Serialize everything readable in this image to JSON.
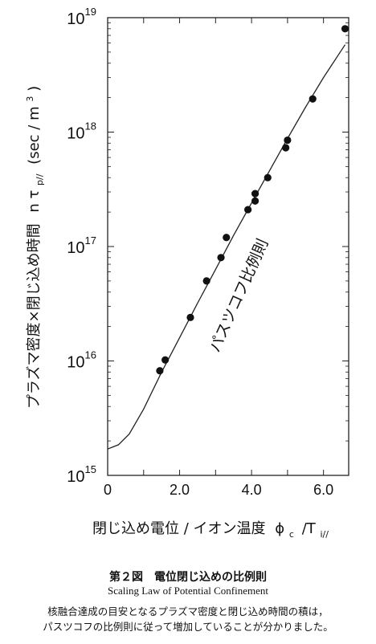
{
  "chart_data": {
    "type": "scatter",
    "ylabel": "プラズマ密度×閉じ込め時間",
    "ylabel_symbol": "n τ",
    "ylabel_symbol_sub": "p//",
    "ylabel_unit": "(sec / m",
    "ylabel_unit_sup": "3",
    "ylabel_unit_close": ")",
    "xlabel": "閉じ込め電位 / イオン温度",
    "xlabel_symbol": "ϕ",
    "xlabel_symbol_sub": "c",
    "xlabel_denom": "/T",
    "xlabel_denom_sub": "i//",
    "xlim": [
      0,
      6.7
    ],
    "ylim_log10": [
      15,
      19
    ],
    "y_scale": "log",
    "x_ticks": [
      {
        "v": 0,
        "label": "0"
      },
      {
        "v": 2,
        "label": "2.0"
      },
      {
        "v": 4,
        "label": "4.0"
      },
      {
        "v": 6,
        "label": "6.0"
      }
    ],
    "y_ticks": [
      {
        "e": 15,
        "base": "10",
        "exp": "15"
      },
      {
        "e": 16,
        "base": "10",
        "exp": "16"
      },
      {
        "e": 17,
        "base": "10",
        "exp": "17"
      },
      {
        "e": 18,
        "base": "10",
        "exp": "18"
      },
      {
        "e": 19,
        "base": "10",
        "exp": "19"
      }
    ],
    "annotation": "パスツコフ比例則",
    "points": [
      {
        "x": 1.45,
        "y": 8200000000000000.0
      },
      {
        "x": 1.6,
        "y": 1.02e+16
      },
      {
        "x": 2.3,
        "y": 2.4e+16
      },
      {
        "x": 2.75,
        "y": 5e+16
      },
      {
        "x": 3.15,
        "y": 8e+16
      },
      {
        "x": 3.3,
        "y": 1.2e+17
      },
      {
        "x": 3.9,
        "y": 2.1e+17
      },
      {
        "x": 4.1,
        "y": 2.5e+17
      },
      {
        "x": 4.1,
        "y": 2.9e+17
      },
      {
        "x": 4.45,
        "y": 4e+17
      },
      {
        "x": 4.95,
        "y": 7.3e+17
      },
      {
        "x": 5.0,
        "y": 8.5e+17
      },
      {
        "x": 5.7,
        "y": 1.95e+18
      },
      {
        "x": 6.6,
        "y": 8e+18
      }
    ],
    "fit_curve": [
      {
        "x": 0.0,
        "y": 1700000000000000.0
      },
      {
        "x": 0.3,
        "y": 1850000000000000.0
      },
      {
        "x": 0.6,
        "y": 2300000000000000.0
      },
      {
        "x": 1.0,
        "y": 3800000000000000.0
      },
      {
        "x": 1.5,
        "y": 8000000000000000.0
      },
      {
        "x": 2.0,
        "y": 1.6e+16
      },
      {
        "x": 2.5,
        "y": 3.2e+16
      },
      {
        "x": 3.0,
        "y": 6.3e+16
      },
      {
        "x": 3.5,
        "y": 1.25e+17
      },
      {
        "x": 4.0,
        "y": 2.4e+17
      },
      {
        "x": 4.5,
        "y": 4.6e+17
      },
      {
        "x": 5.0,
        "y": 8.8e+17
      },
      {
        "x": 5.5,
        "y": 1.65e+18
      },
      {
        "x": 6.0,
        "y": 3e+18
      },
      {
        "x": 6.6,
        "y": 5.8e+18
      }
    ]
  },
  "caption": {
    "title": "第２図　電位閉じ込めの比例則",
    "english": "Scaling Law of Potential Confinement",
    "body_line1": "核融合達成の目安となるプラズマ密度と閉じ込め時間の積は，",
    "body_line2": "パスツコフの比例則に従って増加していることが分かりました。"
  }
}
